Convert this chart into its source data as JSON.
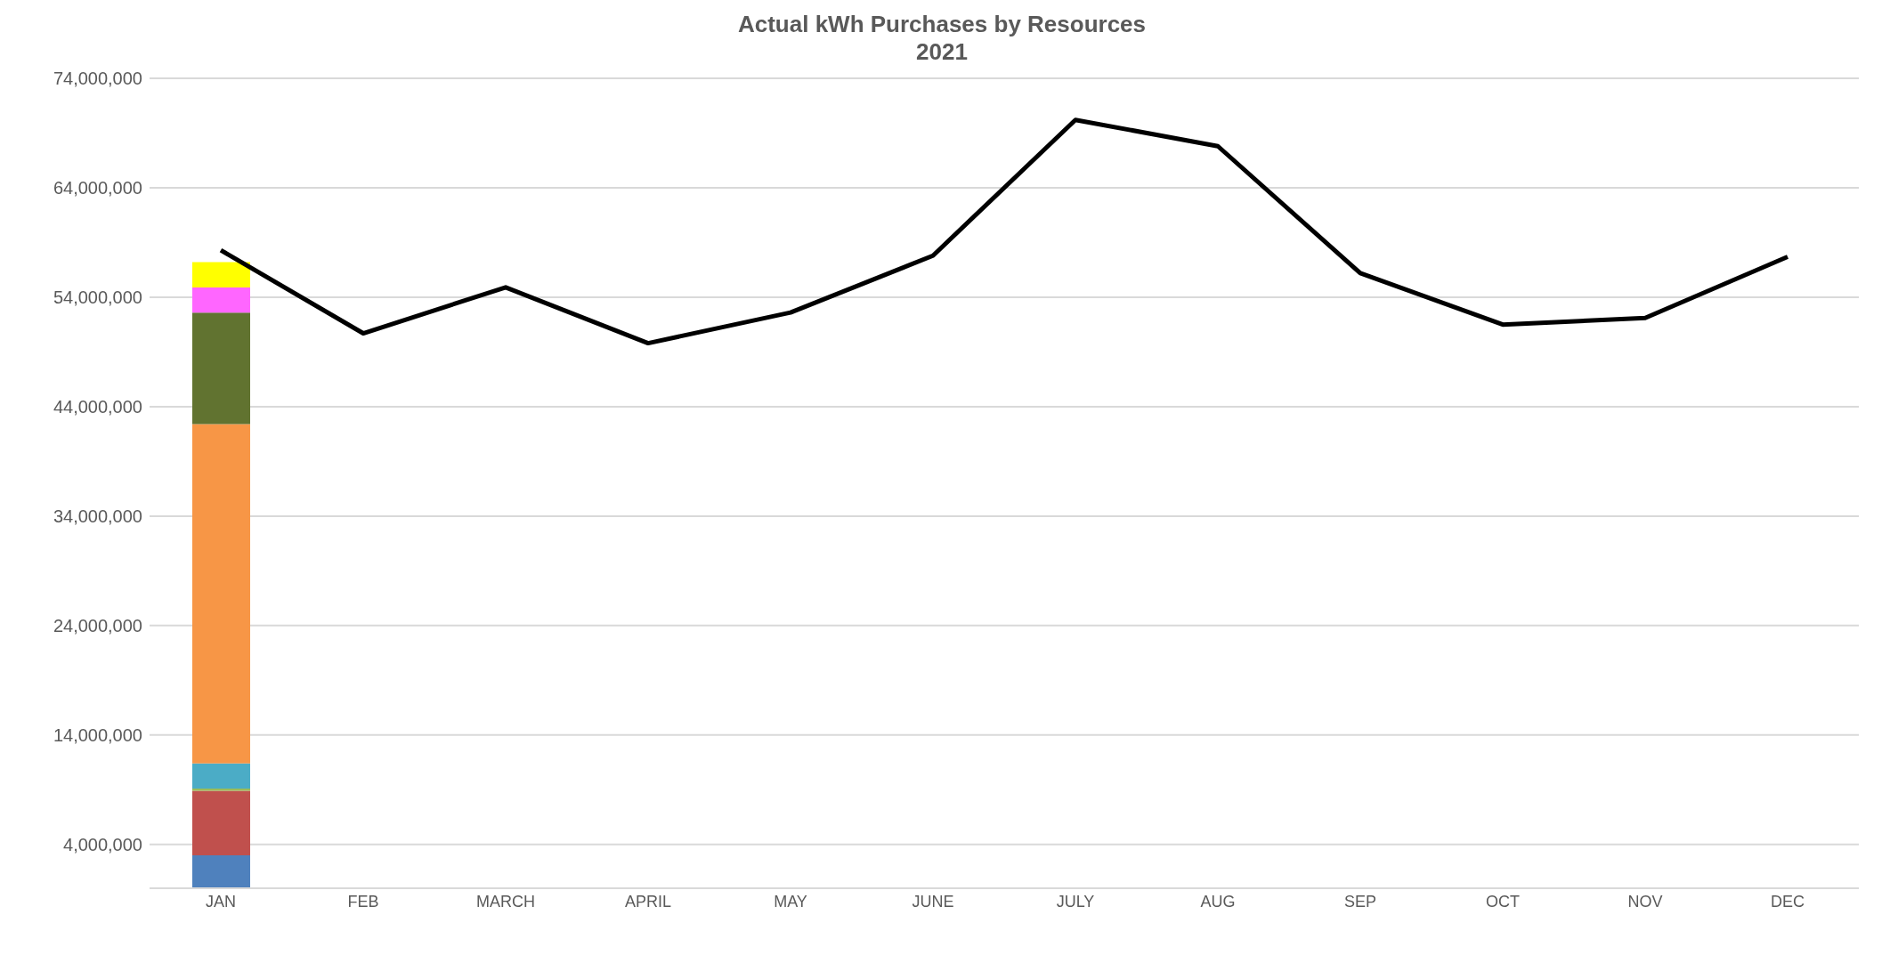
{
  "chart_data": {
    "type": "bar",
    "title": "Actual kWh Purchases by Resources",
    "subtitle": "2021",
    "stacked": true,
    "grid": "y",
    "legend": false,
    "categories": [
      "JAN",
      "FEB",
      "MARCH",
      "APRIL",
      "MAY",
      "JUNE",
      "JULY",
      "AUG",
      "SEP",
      "OCT",
      "NOV",
      "DEC"
    ],
    "ylim": [
      0,
      74000000
    ],
    "yticks": [
      {
        "value": 4000000,
        "label": "4,000,000"
      },
      {
        "value": 14000000,
        "label": "14,000,000"
      },
      {
        "value": 24000000,
        "label": "24,000,000"
      },
      {
        "value": 34000000,
        "label": "34,000,000"
      },
      {
        "value": 44000000,
        "label": "44,000,000"
      },
      {
        "value": 54000000,
        "label": "54,000,000"
      },
      {
        "value": 64000000,
        "label": "64,000,000"
      },
      {
        "value": 74000000,
        "label": "74,000,000"
      }
    ],
    "series": [
      {
        "color": "#4f81bd",
        "values": [
          3000000,
          null,
          null,
          null,
          null,
          null,
          null,
          null,
          null,
          null,
          null,
          null
        ]
      },
      {
        "color": "#c0504d",
        "values": [
          5900000,
          null,
          null,
          null,
          null,
          null,
          null,
          null,
          null,
          null,
          null,
          null
        ]
      },
      {
        "color": "#9bbb59",
        "values": [
          200000,
          null,
          null,
          null,
          null,
          null,
          null,
          null,
          null,
          null,
          null,
          null
        ]
      },
      {
        "color": "#4bacc6",
        "values": [
          2300000,
          null,
          null,
          null,
          null,
          null,
          null,
          null,
          null,
          null,
          null,
          null
        ]
      },
      {
        "color": "#f79646",
        "values": [
          31000000,
          null,
          null,
          null,
          null,
          null,
          null,
          null,
          null,
          null,
          null,
          null
        ]
      },
      {
        "color": "#617330",
        "values": [
          10200000,
          null,
          null,
          null,
          null,
          null,
          null,
          null,
          null,
          null,
          null,
          null
        ]
      },
      {
        "color": "#ff66ff",
        "values": [
          2300000,
          null,
          null,
          null,
          null,
          null,
          null,
          null,
          null,
          null,
          null,
          null
        ]
      },
      {
        "color": "#ffff00",
        "values": [
          2300000,
          null,
          null,
          null,
          null,
          null,
          null,
          null,
          null,
          null,
          null,
          null
        ]
      },
      {
        "type": "line",
        "color": "#000000",
        "marker": "none",
        "values": [
          58300000,
          50700000,
          54900000,
          49800000,
          52600000,
          57800000,
          70200000,
          67800000,
          56200000,
          51500000,
          52100000,
          57700000
        ]
      }
    ]
  }
}
